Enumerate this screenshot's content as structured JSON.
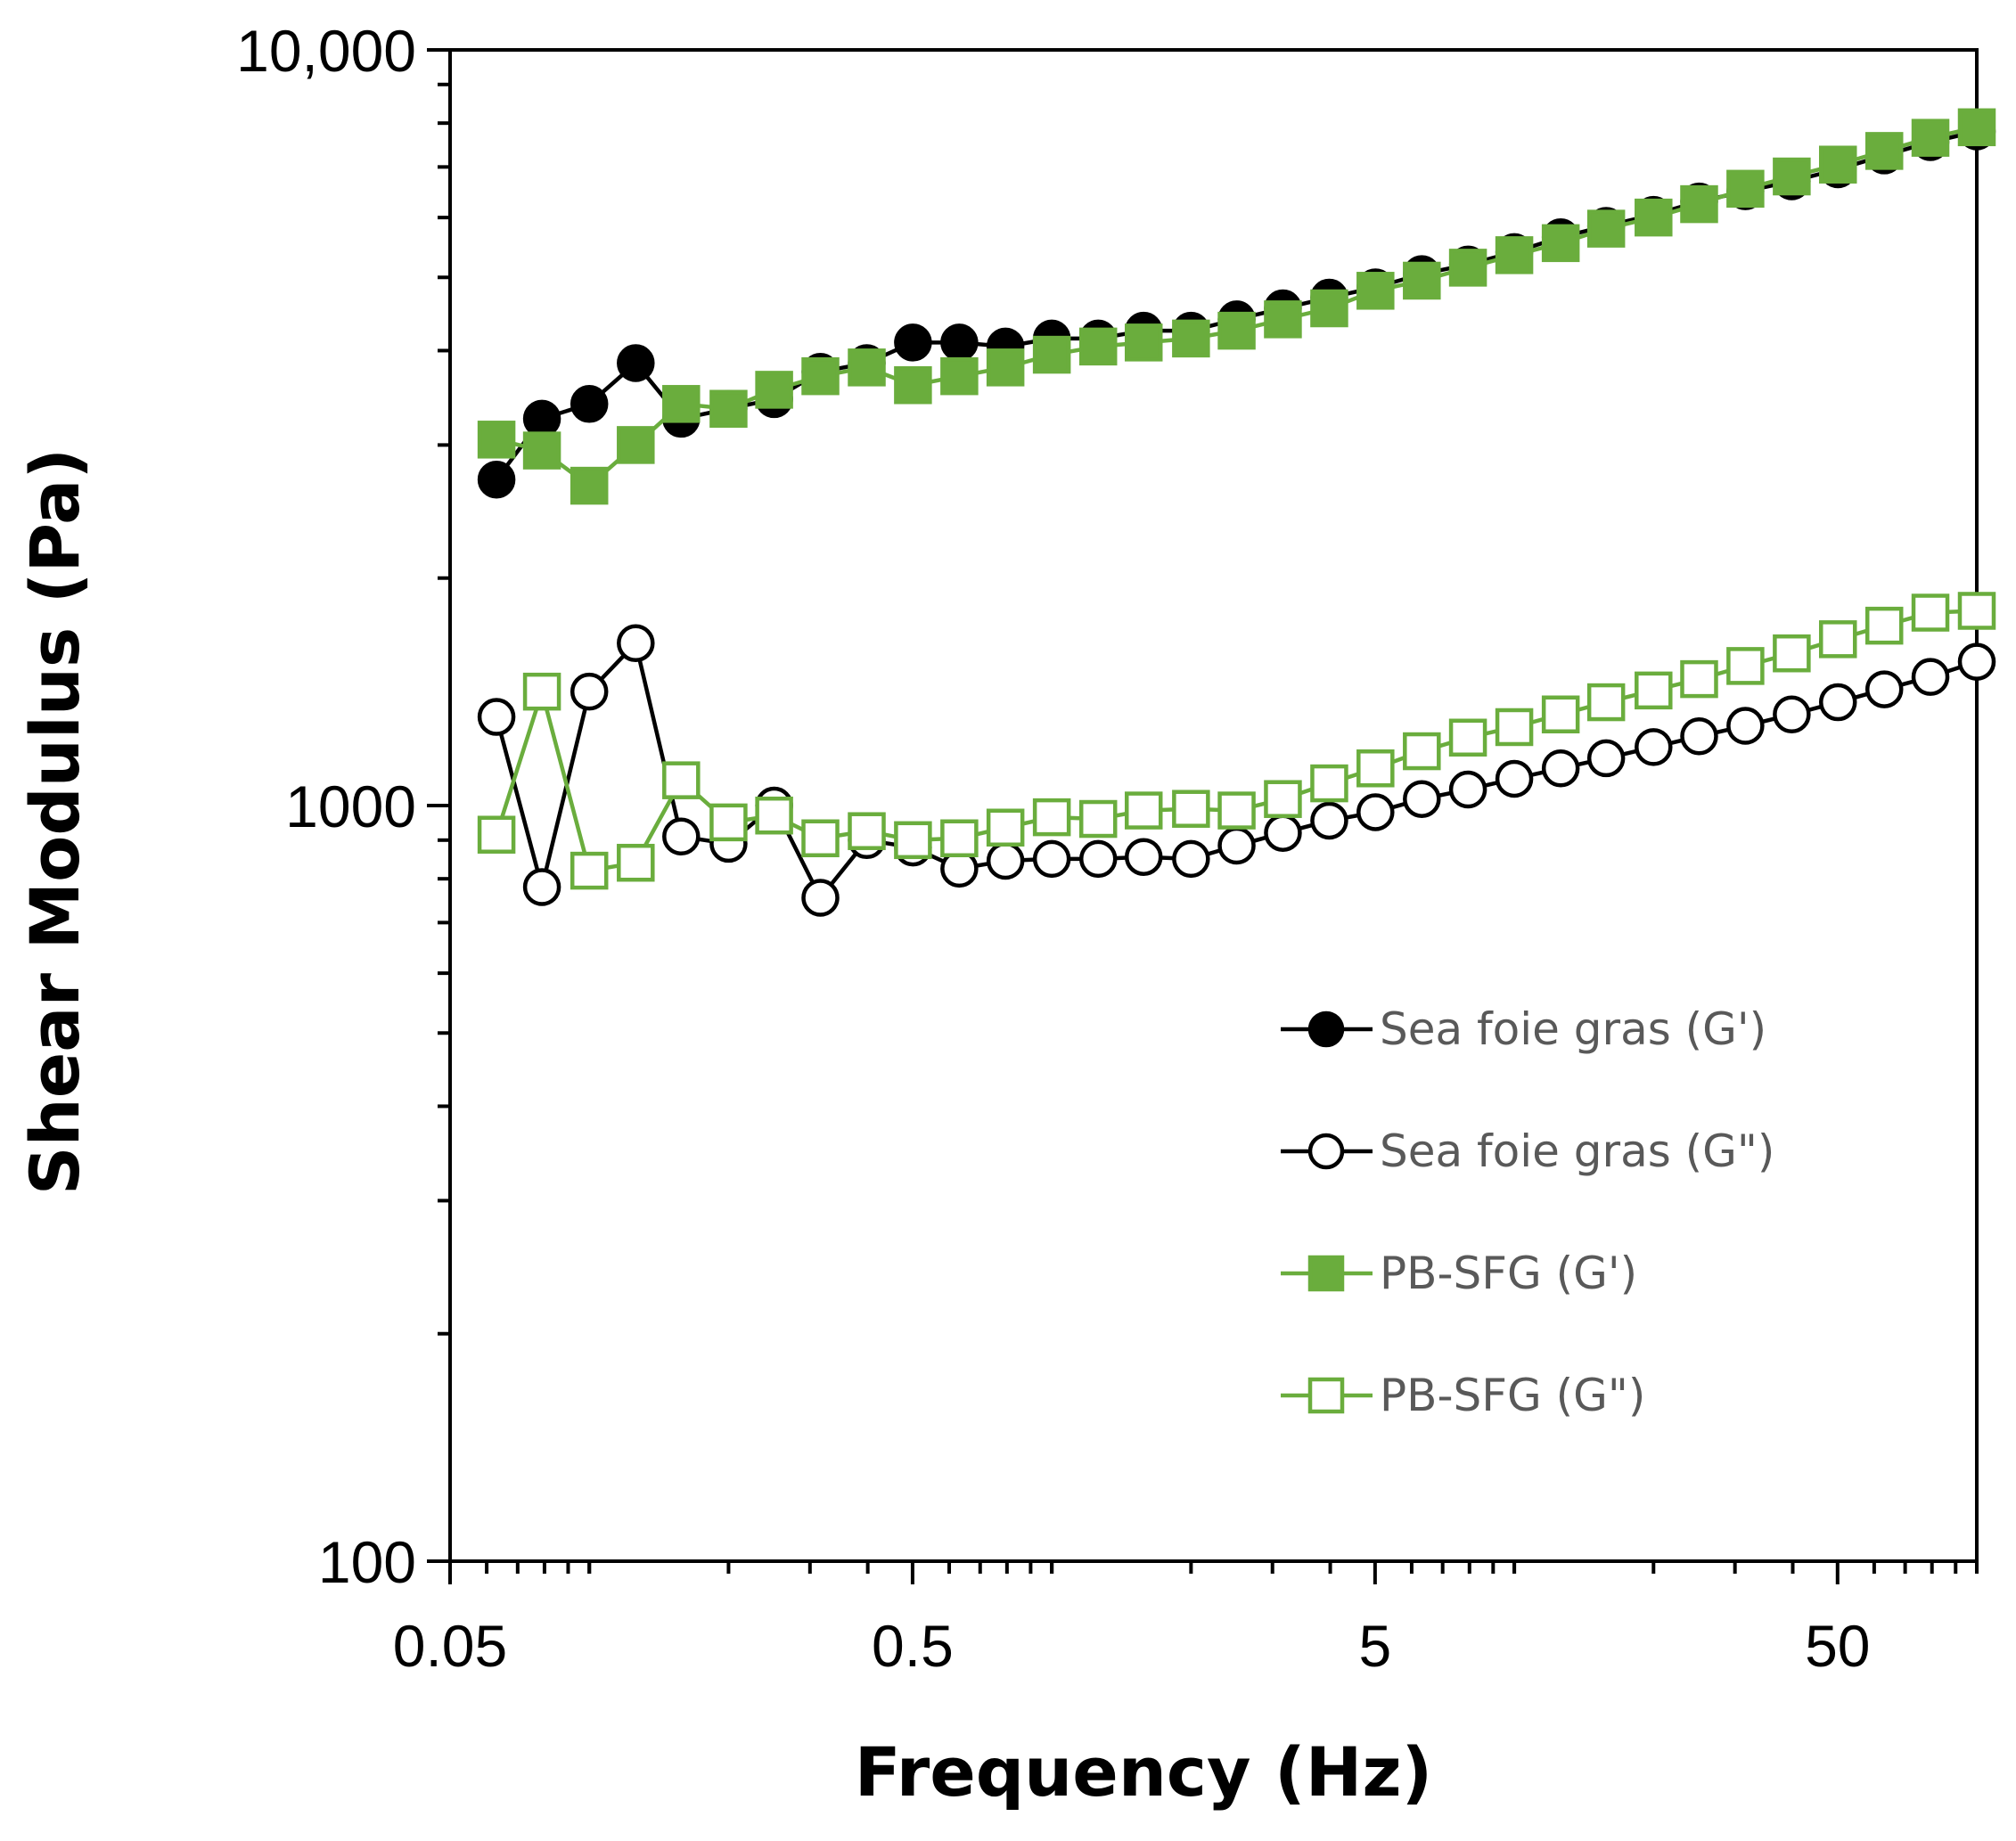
{
  "chart_data": {
    "type": "line",
    "scale": {
      "x": "log",
      "y": "log"
    },
    "xlabel": "Frequency (Hz)",
    "ylabel": "Shear Modulus (Pa)",
    "xlim": [
      0.05,
      100
    ],
    "ylim": [
      100,
      10000
    ],
    "x_ticks": [
      {
        "value": 0.05,
        "label": "0.05"
      },
      {
        "value": 0.5,
        "label": "0.5"
      },
      {
        "value": 5,
        "label": "5"
      },
      {
        "value": 50,
        "label": "50"
      }
    ],
    "y_ticks": [
      {
        "value": 100,
        "label": "100"
      },
      {
        "value": 1000,
        "label": "1000"
      },
      {
        "value": 10000,
        "label": "10,000"
      }
    ],
    "x": [
      0.063,
      0.079,
      0.1,
      0.126,
      0.158,
      0.2,
      0.251,
      0.316,
      0.398,
      0.501,
      0.631,
      0.794,
      1.0,
      1.26,
      1.58,
      2.0,
      2.51,
      3.16,
      3.98,
      5.01,
      6.31,
      7.94,
      10.0,
      12.6,
      15.8,
      20.0,
      25.1,
      31.6,
      39.8,
      50.1,
      63.1,
      79.4,
      100.0
    ],
    "series": [
      {
        "name": "Sea foie gras (G')",
        "color": "#000000",
        "marker": "circle",
        "filled": true,
        "values": [
          2700,
          3250,
          3400,
          3850,
          3250,
          3350,
          3450,
          3750,
          3850,
          4100,
          4100,
          4050,
          4150,
          4150,
          4250,
          4250,
          4400,
          4550,
          4700,
          4850,
          5050,
          5200,
          5400,
          5650,
          5850,
          6050,
          6300,
          6500,
          6700,
          6950,
          7250,
          7550,
          7800
        ]
      },
      {
        "name": "Sea foie gras (G\")",
        "color": "#000000",
        "marker": "circle",
        "filled": false,
        "values": [
          1310,
          780,
          1415,
          1640,
          910,
          890,
          1000,
          755,
          900,
          880,
          825,
          845,
          850,
          850,
          855,
          850,
          885,
          920,
          955,
          980,
          1020,
          1050,
          1085,
          1120,
          1155,
          1195,
          1235,
          1275,
          1320,
          1370,
          1425,
          1480,
          1550
        ]
      },
      {
        "name": "PB-SFG (G')",
        "color": "#6AAD3D",
        "marker": "square",
        "filled": true,
        "values": [
          3050,
          2950,
          2650,
          3000,
          3400,
          3350,
          3550,
          3700,
          3800,
          3600,
          3700,
          3800,
          3950,
          4050,
          4100,
          4150,
          4250,
          4400,
          4550,
          4800,
          4950,
          5150,
          5350,
          5550,
          5800,
          6000,
          6250,
          6550,
          6800,
          7050,
          7350,
          7650,
          7900
        ]
      },
      {
        "name": "PB-SFG (G\")",
        "color": "#6AAD3D",
        "marker": "square",
        "filled": false,
        "values": [
          915,
          1415,
          820,
          840,
          1080,
          950,
          970,
          905,
          925,
          900,
          905,
          935,
          965,
          960,
          985,
          990,
          985,
          1020,
          1070,
          1120,
          1180,
          1230,
          1270,
          1320,
          1370,
          1420,
          1470,
          1530,
          1590,
          1660,
          1730,
          1800,
          1810
        ]
      }
    ],
    "legend": {
      "placement": "inside-right"
    }
  }
}
